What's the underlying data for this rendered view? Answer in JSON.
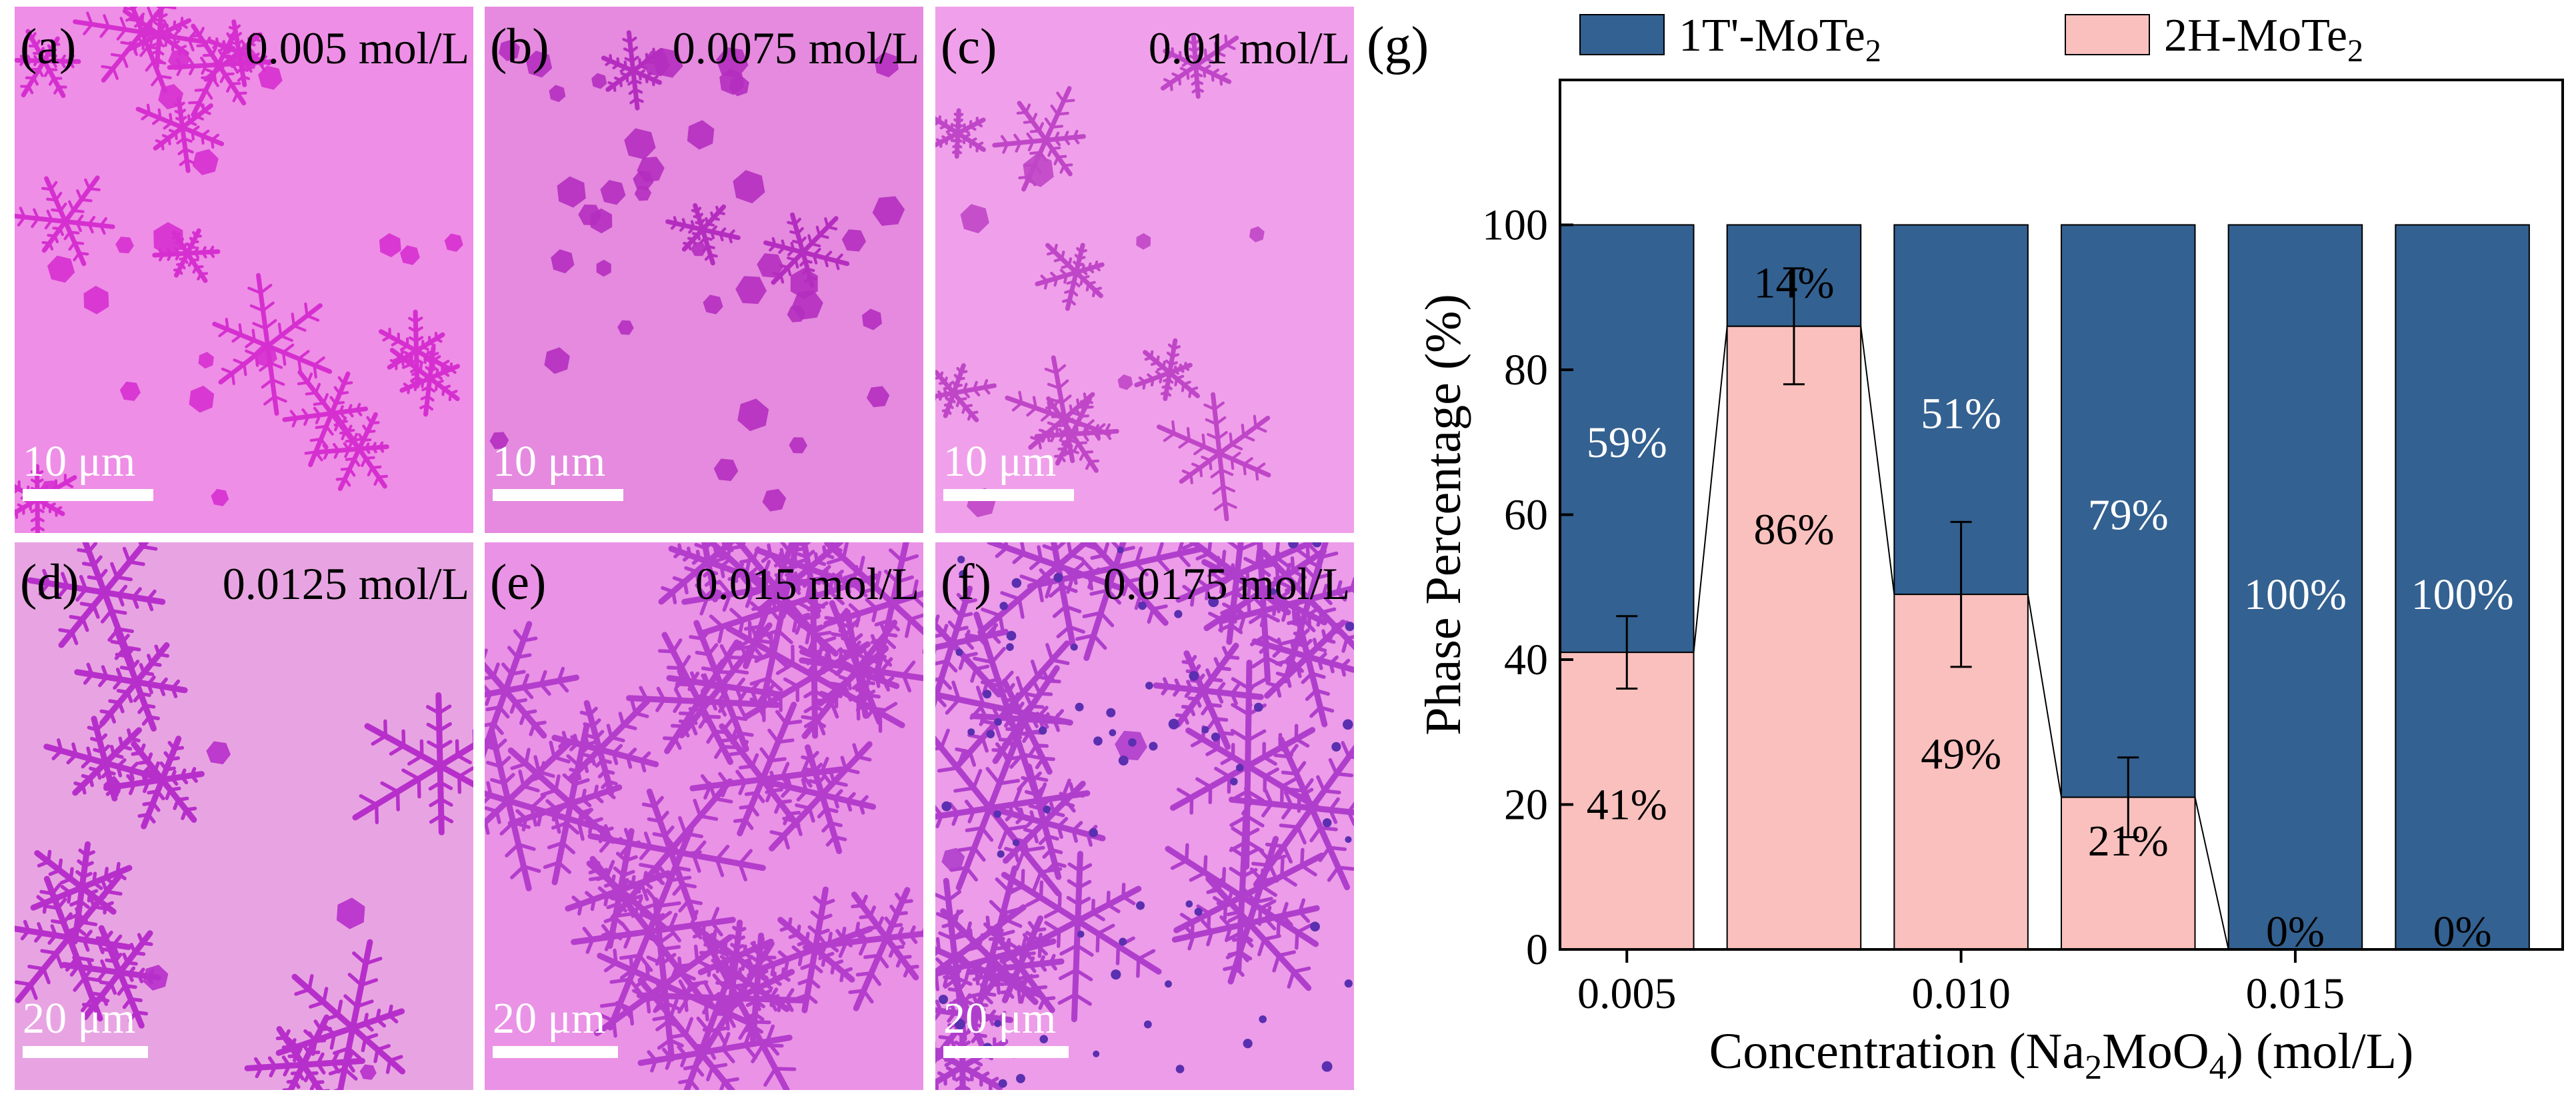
{
  "panels": [
    {
      "label": "(a)",
      "concentration": "0.005 mol/L",
      "scale": "10 μm",
      "bg": "#ee8ee6",
      "crystal": "#d62fd0"
    },
    {
      "label": "(b)",
      "concentration": "0.0075 mol/L",
      "scale": "10 μm",
      "bg": "#e58adf",
      "crystal": "#b42dbf"
    },
    {
      "label": "(c)",
      "concentration": "0.01 mol/L",
      "scale": "10 μm",
      "bg": "#f0a0ea",
      "crystal": "#c046c8"
    },
    {
      "label": "(d)",
      "concentration": "0.0125 mol/L",
      "scale": "20 μm",
      "bg": "#e8a4e2",
      "crystal": "#b72fcb"
    },
    {
      "label": "(e)",
      "concentration": "0.015 mol/L",
      "scale": "20 μm",
      "bg": "#ea92e6",
      "crystal": "#b43dcc"
    },
    {
      "label": "(f)",
      "concentration": "0.0175 mol/L",
      "scale": "20 μm",
      "bg": "#ec9ce8",
      "crystal": "#b03ecc"
    }
  ],
  "chart_label": "(g)",
  "colors": {
    "t1": "#336191",
    "h2": "#f9c0bd",
    "edge": "#000000",
    "label_light": "#ffffff",
    "label_dark": "#000000"
  },
  "chart_data": {
    "type": "bar",
    "stacked": true,
    "x": [
      0.005,
      0.0075,
      0.01,
      0.0125,
      0.015,
      0.0175
    ],
    "series": [
      {
        "name": "2H-MoTe2",
        "values": [
          41,
          86,
          49,
          21,
          0,
          0
        ],
        "labels": [
          "41%",
          "86%",
          "49%",
          "21%",
          "0%",
          "0%"
        ],
        "errors": [
          5,
          8,
          10,
          5.5,
          0,
          0
        ]
      },
      {
        "name": "1T'-MoTe2",
        "values": [
          59,
          14,
          51,
          79,
          100,
          100
        ],
        "labels": [
          "59%",
          "14%",
          "51%",
          "79%",
          "100%",
          "100%"
        ]
      }
    ],
    "legend": [
      {
        "key": "t1",
        "name": "1T'-MoTe",
        "sub": "2"
      },
      {
        "key": "h2",
        "name": "2H-MoTe",
        "sub": "2"
      }
    ],
    "xlabel": {
      "pre": "Concentration (Na",
      "s1": "2",
      "mid": "MoO",
      "s2": "4",
      "post": ") (mol/L)"
    },
    "ylabel": "Phase Percentage (%)",
    "xticks": [
      0.005,
      0.01,
      0.015
    ],
    "xtick_labels": [
      "0.005",
      "0.010",
      "0.015"
    ],
    "yticks": [
      0,
      20,
      40,
      60,
      80,
      100
    ],
    "xlim": [
      0.004,
      0.019
    ],
    "ylim": [
      0,
      120
    ]
  }
}
